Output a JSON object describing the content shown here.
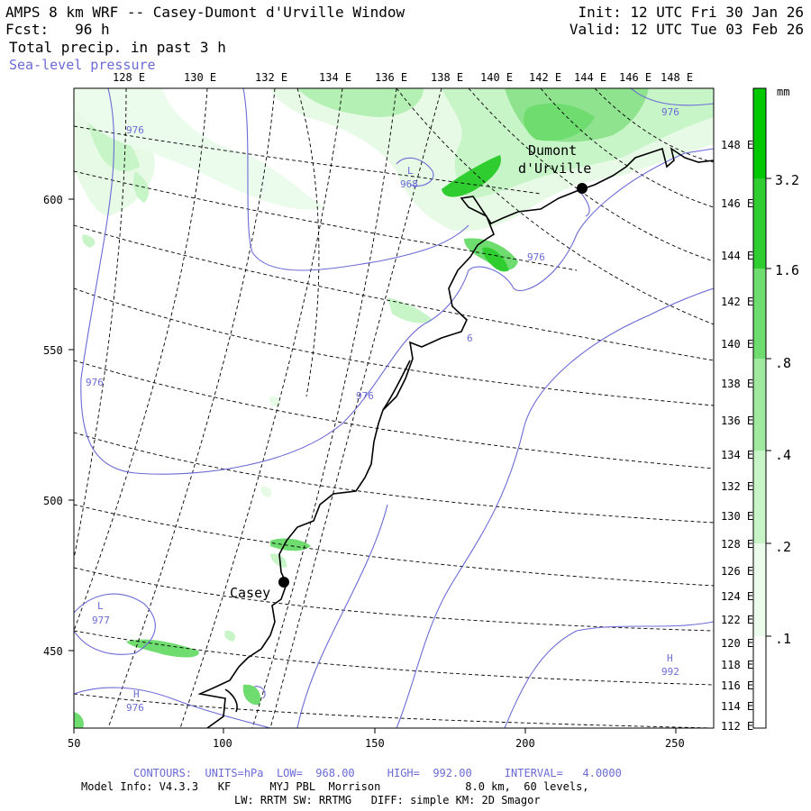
{
  "header": {
    "title": "AMPS 8 km WRF -- Casey-Dumont d'Urville Window",
    "forecast": "Fcst:   96 h",
    "field": "Total precip. in past 3 h",
    "overlay": "Sea-level pressure",
    "init": "Init: 12 UTC Fri 30 Jan 26",
    "valid": "Valid: 12 UTC Tue 03 Feb 26"
  },
  "map": {
    "top_lon_labels": [
      "128 E",
      "130 E",
      "132 E",
      "134 E",
      "136 E",
      "138 E",
      "140 E",
      "142 E",
      "144 E",
      "146 E",
      "148 E"
    ],
    "right_lon_labels": [
      "148 E",
      "146 E",
      "144 E",
      "142 E",
      "140 E",
      "138 E",
      "136 E",
      "134 E",
      "132 E",
      "130 E",
      "128 E",
      "126 E",
      "124 E",
      "122 E",
      "120 E",
      "118 E",
      "116 E",
      "114 E",
      "112 E"
    ],
    "x_ticks": [
      "50",
      "100",
      "150",
      "200",
      "250"
    ],
    "y_ticks": [
      "600",
      "550",
      "500",
      "450"
    ],
    "stations": [
      {
        "name": "Casey"
      },
      {
        "name": "Dumont",
        "name2": "d'Urville"
      }
    ],
    "pressure_labels": [
      {
        "text": "976"
      },
      {
        "text": "L"
      },
      {
        "text": "968"
      },
      {
        "text": "976"
      },
      {
        "text": "976"
      },
      {
        "text": "976"
      },
      {
        "text": "976"
      },
      {
        "text": "6"
      },
      {
        "text": "L"
      },
      {
        "text": "977"
      },
      {
        "text": "H"
      },
      {
        "text": "976"
      },
      {
        "text": "H"
      },
      {
        "text": "992"
      }
    ],
    "colors": {
      "contour": "#6b6bd6",
      "coast": "#000000",
      "grid": "#000000",
      "precip_light": "#e6fae6",
      "precip_1": "#b4f0b4",
      "precip_2": "#6fdc6f",
      "precip_3": "#2fcd2f"
    }
  },
  "colorbar": {
    "unit": "mm",
    "levels": [
      "3.2",
      "1.6",
      ".8",
      ".4",
      ".2",
      ".1"
    ],
    "colors": [
      "#00c800",
      "#2fcd2f",
      "#6fdc6f",
      "#a0eaa0",
      "#c8f5c8",
      "#ecfcec"
    ]
  },
  "footer": {
    "contours": "CONTOURS:  UNITS=hPa  LOW=  968.00     HIGH=  992.00     INTERVAL=   4.0000",
    "model": "Model Info: V4.3.3   KF      MYJ PBL  Morrison             8.0 km,  60 levels,",
    "physics": "LW: RRTM SW: RRTMG   DIFF: simple KM: 2D Smagor"
  }
}
